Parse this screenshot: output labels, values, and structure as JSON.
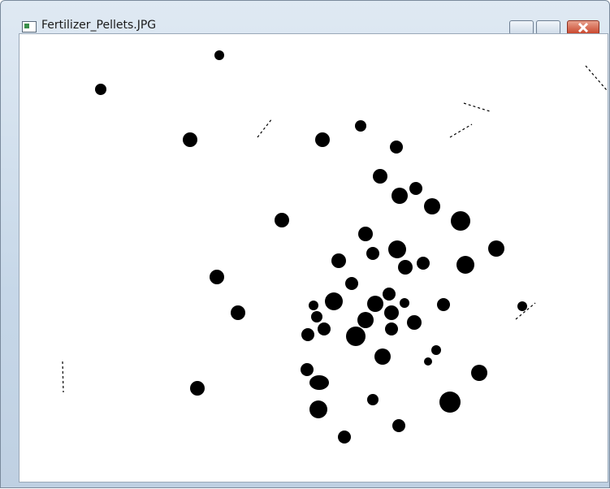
{
  "window": {
    "title": "Fertilizer_Pellets.JPG"
  }
}
